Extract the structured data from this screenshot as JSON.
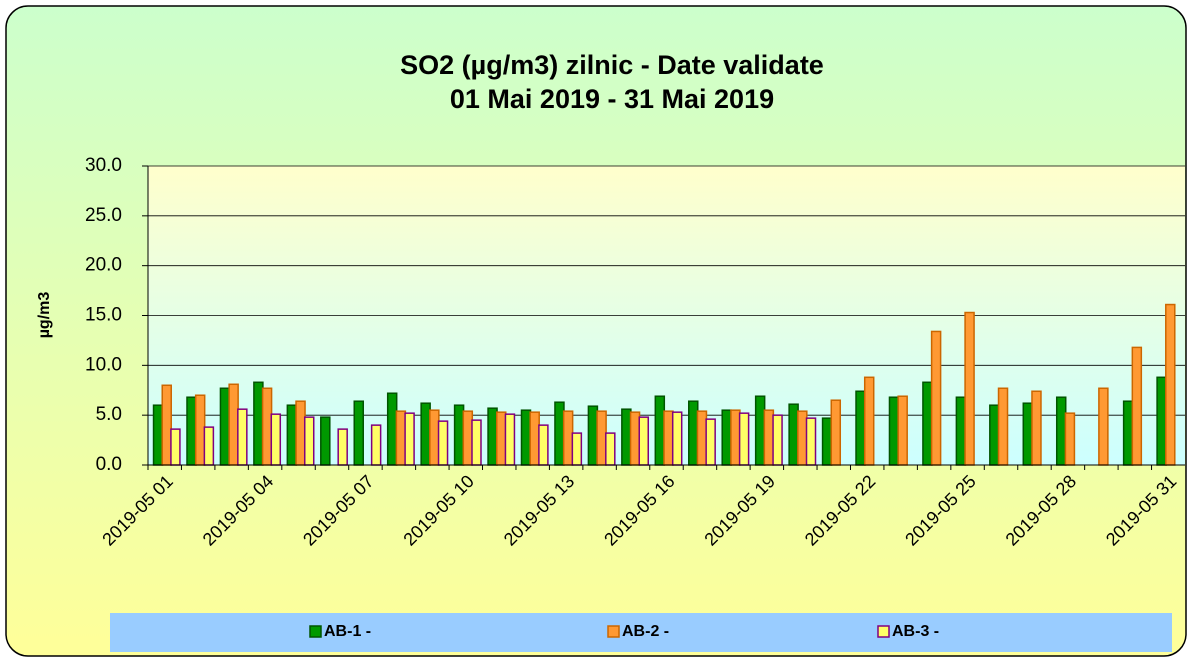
{
  "chart_data": {
    "type": "bar",
    "title": "SO2 (µg/m3) zilnic - Date validate",
    "subtitle": "01 Mai 2019 - 31 Mai 2019",
    "y_label": "µg/m3",
    "categories": [
      "2019-05 01",
      null,
      null,
      "2019-05 04",
      null,
      null,
      "2019-05 07",
      null,
      null,
      "2019-05 10",
      null,
      null,
      "2019-05 13",
      null,
      null,
      "2019-05 16",
      null,
      null,
      "2019-05 19",
      null,
      null,
      "2019-05 22",
      null,
      null,
      "2019-05 25",
      null,
      null,
      "2019-05 28",
      null,
      null,
      "2019-05 31"
    ],
    "series": [
      {
        "name": "AB-1 -",
        "color": "#009900",
        "stroke": "#005500",
        "values": [
          6.0,
          6.8,
          7.7,
          8.3,
          6.0,
          4.8,
          6.4,
          7.2,
          6.2,
          6.0,
          5.7,
          5.5,
          6.3,
          5.9,
          5.6,
          6.9,
          6.4,
          5.5,
          6.9,
          6.1,
          4.7,
          7.4,
          6.8,
          8.3,
          6.8,
          6.0,
          6.2,
          6.8,
          null,
          6.4,
          8.8
        ]
      },
      {
        "name": "AB-2 -",
        "color": "#ff9933",
        "stroke": "#cc6600",
        "values": [
          8.0,
          7.0,
          8.1,
          7.7,
          6.4,
          null,
          null,
          5.4,
          5.5,
          5.4,
          5.3,
          5.3,
          5.4,
          5.4,
          5.3,
          5.4,
          5.4,
          5.5,
          5.5,
          5.4,
          6.5,
          8.8,
          6.9,
          13.4,
          15.3,
          7.7,
          7.4,
          5.2,
          7.7,
          11.8,
          16.1
        ]
      },
      {
        "name": "AB-3 -",
        "color": "#ffff66",
        "stroke": "#800080",
        "values": [
          3.6,
          3.8,
          5.6,
          5.1,
          4.8,
          3.6,
          4.0,
          5.2,
          4.4,
          4.5,
          5.1,
          4.0,
          3.2,
          3.2,
          4.8,
          5.3,
          4.6,
          5.2,
          5.0,
          4.7,
          null,
          null,
          null,
          null,
          null,
          null,
          null,
          null,
          null,
          null,
          null
        ]
      }
    ],
    "ylim": [
      0,
      30
    ],
    "yticks": [
      {
        "value": 0,
        "label": "0.0"
      },
      {
        "value": 5,
        "label": "5.0"
      },
      {
        "value": 10,
        "label": "10.0"
      },
      {
        "value": 15,
        "label": "15.0"
      },
      {
        "value": 20,
        "label": "20.0"
      },
      {
        "value": 25,
        "label": "25.0"
      },
      {
        "value": 30,
        "label": "30.0"
      }
    ],
    "grid": true
  }
}
